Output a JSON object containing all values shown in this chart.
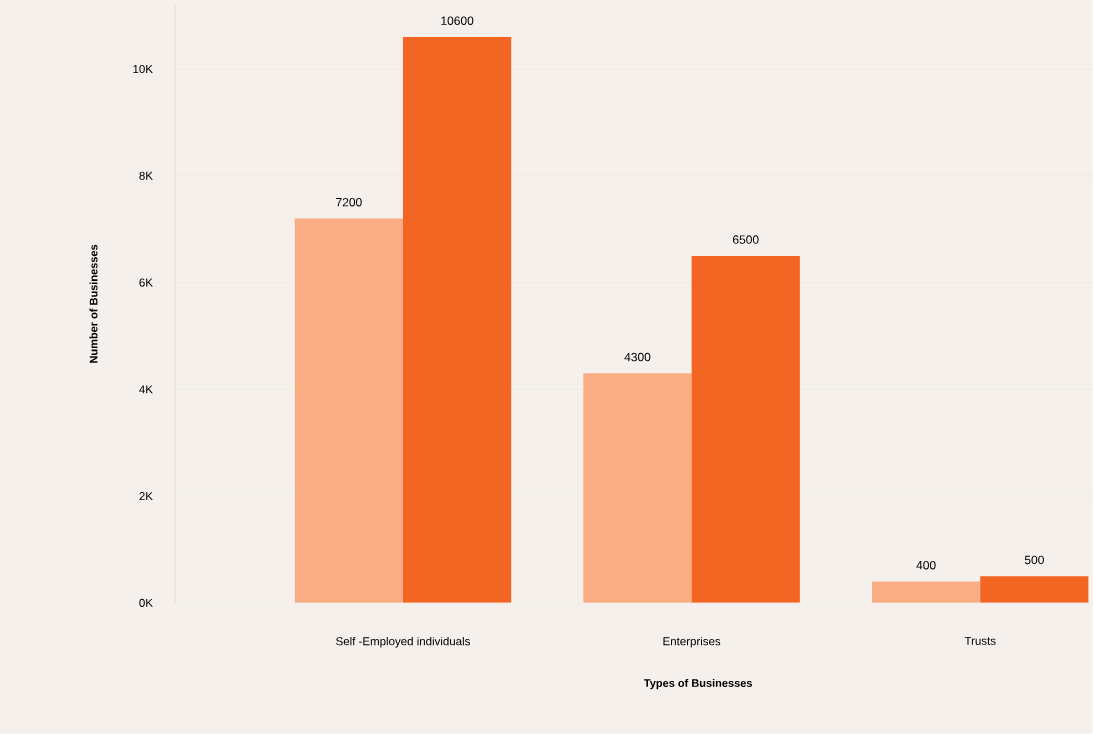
{
  "chart_data": {
    "type": "bar",
    "xlabel": "Types of Businesses",
    "ylabel": "Number of Businesses",
    "categories": [
      "Self -Employed individuals",
      "Enterprises",
      "Trusts"
    ],
    "series": [
      {
        "color": "#f8ad82",
        "values": [
          7200,
          4300,
          400
        ]
      },
      {
        "color": "#f26522",
        "values": [
          10600,
          6500,
          500
        ]
      }
    ],
    "ylim": [
      0,
      11200
    ],
    "yticks": [
      {
        "value": 0,
        "label": "0K"
      },
      {
        "value": 2000,
        "label": "2K"
      },
      {
        "value": 4000,
        "label": "4K"
      },
      {
        "value": 6000,
        "label": "6K"
      },
      {
        "value": 8000,
        "label": "8K"
      },
      {
        "value": 10000,
        "label": "10K"
      }
    ],
    "grid": "y",
    "data_labels": true
  }
}
